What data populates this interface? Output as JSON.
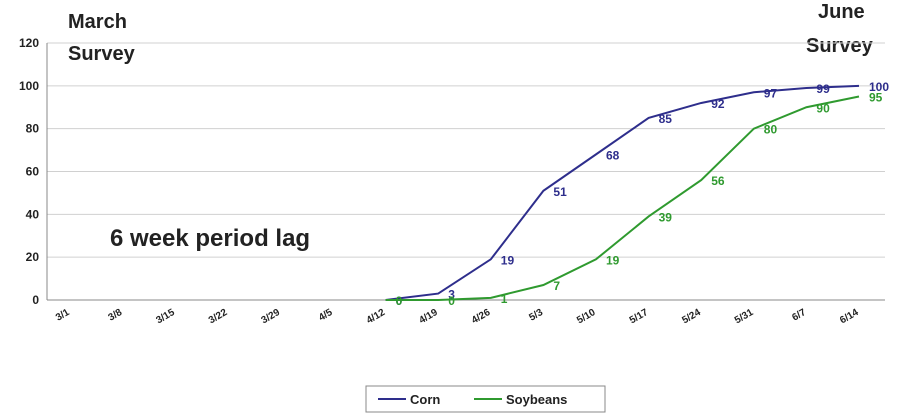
{
  "chart_data": {
    "type": "line",
    "annotations": [
      "March",
      "Survey",
      "June",
      "Survey",
      "6 week period lag"
    ],
    "categories": [
      "3/1",
      "3/8",
      "3/15",
      "3/22",
      "3/29",
      "4/5",
      "4/12",
      "4/19",
      "4/26",
      "5/3",
      "5/10",
      "5/17",
      "5/24",
      "5/31",
      "6/7",
      "6/14"
    ],
    "series": [
      {
        "name": "Corn",
        "color": "#2e2e8c",
        "values": [
          null,
          null,
          null,
          null,
          null,
          null,
          0,
          3,
          19,
          51,
          68,
          85,
          92,
          97,
          99,
          100
        ]
      },
      {
        "name": "Soybeans",
        "color": "#2f9a2f",
        "values": [
          null,
          null,
          null,
          null,
          null,
          null,
          0,
          0,
          1,
          7,
          19,
          39,
          56,
          80,
          90,
          95
        ]
      }
    ],
    "ylim": [
      0,
      120
    ],
    "yticks": [
      0,
      20,
      40,
      60,
      80,
      100,
      120
    ],
    "grid": true,
    "legend": "bottom"
  }
}
